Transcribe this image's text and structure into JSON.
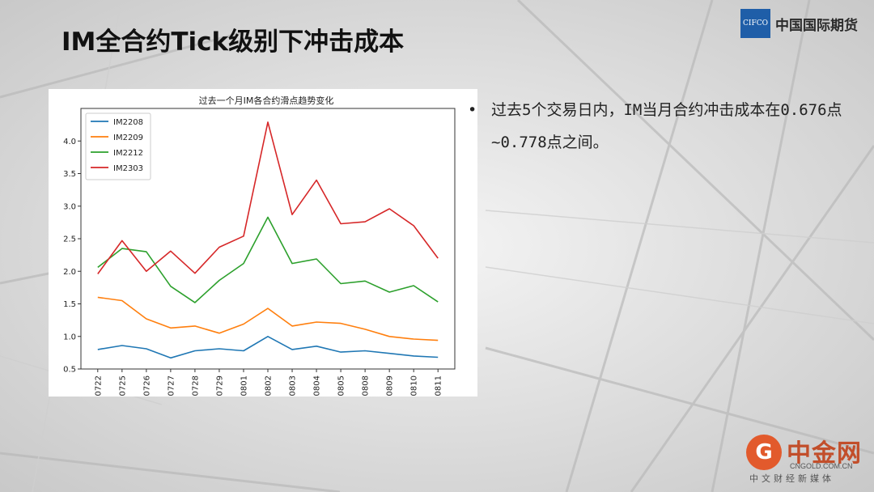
{
  "slide": {
    "title": "IM全合约Tick级别下冲击成本"
  },
  "logo": {
    "mark": "CIFCO",
    "name": "中国国际期货"
  },
  "bullet": {
    "text": "过去5个交易日内，IM当月合约冲击成本在0.676点~0.778点之间。"
  },
  "watermark": {
    "badge": "G",
    "name": "中金网",
    "url": "CNGOLD.COM.CN",
    "tagline": "中文财经新媒体"
  },
  "colors": {
    "IM2208": "#1f77b4",
    "IM2209": "#ff7f0e",
    "IM2212": "#2ca02c",
    "IM2303": "#d62728"
  },
  "chart_data": {
    "type": "line",
    "title": "过去一个月IM各合约滑点趋势变化",
    "xlabel": "",
    "ylabel": "",
    "ylim": [
      0.5,
      4.5
    ],
    "yticks": [
      0.5,
      1.0,
      1.5,
      2.0,
      2.5,
      3.0,
      3.5,
      4.0
    ],
    "ytick_labels": [
      "0.5",
      "1.0",
      "1.5",
      "2.0",
      "2.5",
      "3.0",
      "3.5",
      "4.0"
    ],
    "legend": "top-left",
    "grid": false,
    "categories": [
      "0722",
      "0725",
      "0726",
      "0727",
      "0728",
      "0729",
      "0801",
      "0802",
      "0803",
      "0804",
      "0805",
      "0808",
      "0809",
      "0810",
      "0811"
    ],
    "series": [
      {
        "name": "IM2208",
        "values": [
          0.8,
          0.86,
          0.81,
          0.67,
          0.78,
          0.81,
          0.78,
          1.0,
          0.8,
          0.85,
          0.76,
          0.78,
          0.74,
          0.7,
          0.68
        ]
      },
      {
        "name": "IM2209",
        "values": [
          1.6,
          1.55,
          1.27,
          1.13,
          1.16,
          1.05,
          1.19,
          1.43,
          1.16,
          1.22,
          1.2,
          1.11,
          1.0,
          0.96,
          0.94
        ]
      },
      {
        "name": "IM2212",
        "values": [
          2.06,
          2.35,
          2.3,
          1.77,
          1.52,
          1.86,
          2.12,
          2.83,
          2.12,
          2.19,
          1.81,
          1.85,
          1.68,
          1.78,
          1.53
        ]
      },
      {
        "name": "IM2303",
        "values": [
          1.96,
          2.47,
          2.0,
          2.31,
          1.97,
          2.37,
          2.54,
          4.29,
          2.87,
          3.4,
          2.73,
          2.76,
          2.96,
          2.7,
          2.2
        ]
      }
    ]
  }
}
